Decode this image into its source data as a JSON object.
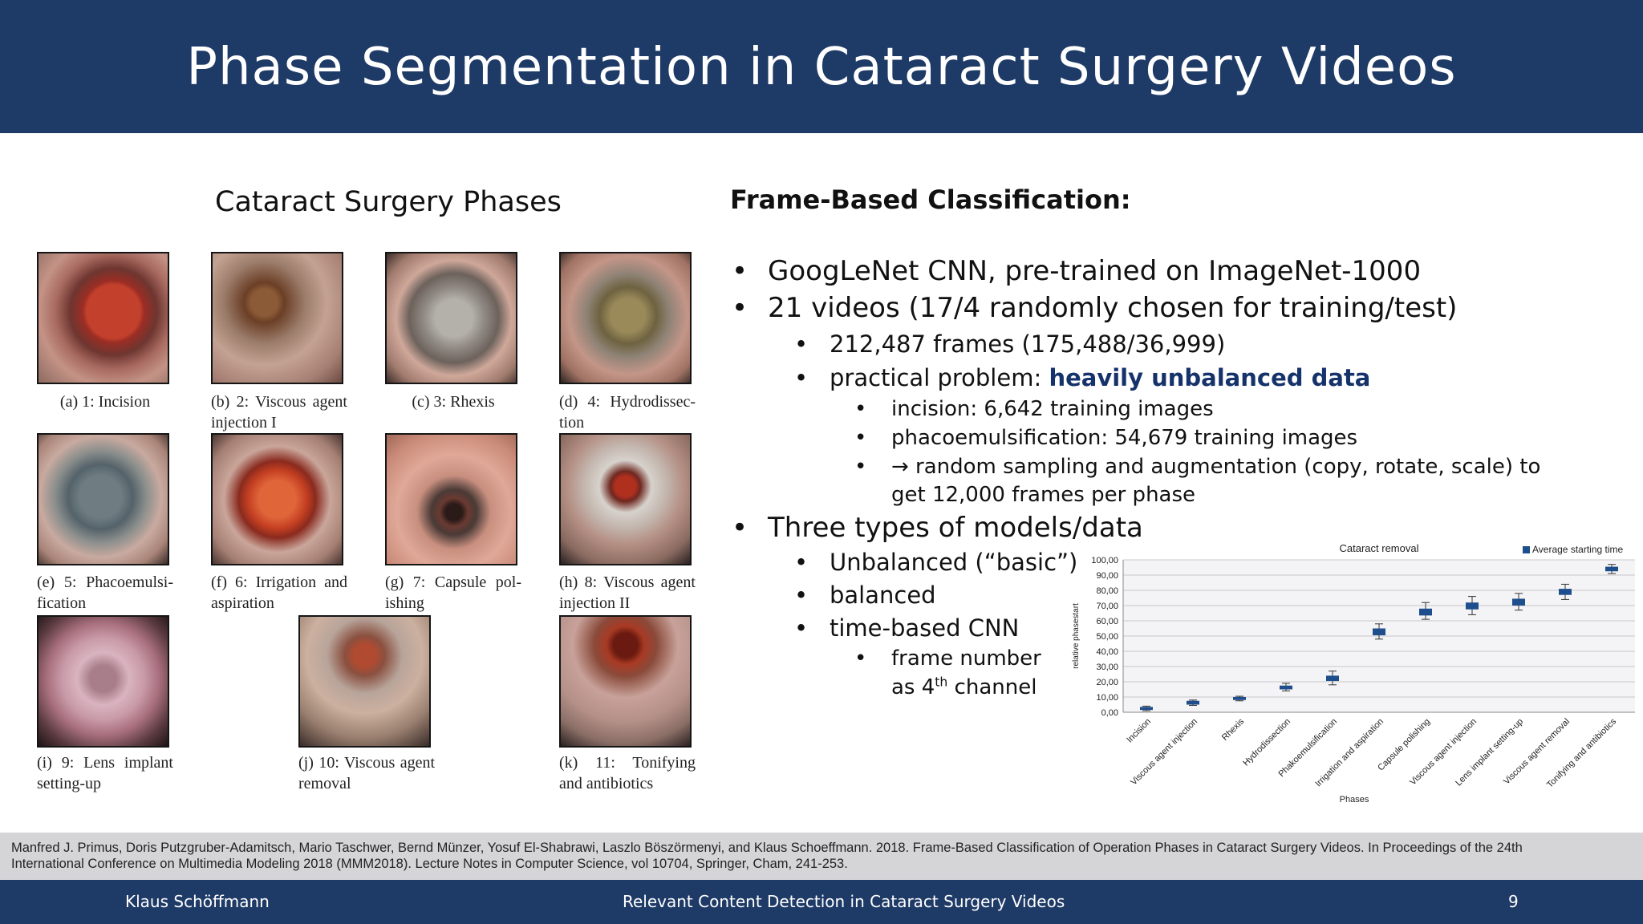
{
  "header": {
    "title": "Phase Segmentation in Cataract Surgery Videos"
  },
  "left": {
    "title": "Cataract Surgery Phases",
    "phases": [
      {
        "caption": "(a) 1: Incision"
      },
      {
        "caption": "(b) 2: Viscous agent injection I"
      },
      {
        "caption": "(c) 3: Rhexis"
      },
      {
        "caption": "(d) 4: Hydrodissec- tion"
      },
      {
        "caption": "(e) 5: Phacoemulsi- fication"
      },
      {
        "caption": "(f) 6: Irrigation and aspiration"
      },
      {
        "caption": "(g) 7: Capsule pol- ishing"
      },
      {
        "caption": "(h) 8: Viscous agent injection II"
      },
      {
        "caption": "(i) 9: Lens implant setting-up"
      },
      {
        "caption": "(j) 10: Viscous agent removal"
      },
      {
        "caption": "(k) 11: Tonifying and antibiotics"
      }
    ]
  },
  "right": {
    "title": "Frame-Based Classification:",
    "bullets": {
      "b1": "GoogLeNet CNN, pre-trained on ImageNet-1000",
      "b2": "21 videos (17/4 randomly chosen for training/test)",
      "b2_1": "212,487 frames (175,488/36,999)",
      "b2_2_prefix": "practical problem: ",
      "b2_2_highlight": "heavily unbalanced data",
      "b2_2_1": "incision: 6,642 training images",
      "b2_2_2": "phacoemulsification: 54,679 training images",
      "b2_2_3_line1": "→ random sampling and augmentation (copy, rotate, scale) to",
      "b2_2_3_line2": "get 12,000 frames per phase",
      "b3": "Three types of models/data",
      "b3_1": "Unbalanced (“basic”)",
      "b3_2": "balanced",
      "b3_3": "time-based CNN",
      "b3_3_1_line1": "frame number",
      "b3_3_1_line2_pre": "as 4",
      "b3_3_1_line2_sup": "th",
      "b3_3_1_line2_post": " channel"
    }
  },
  "chart_data": {
    "type": "box",
    "title": "Cataract removal",
    "xlabel": "Phases",
    "ylabel": "relative phasestart",
    "legend": "Average starting time",
    "legend_position": "top-right",
    "ylim": [
      0,
      100
    ],
    "yticks": [
      "0,00",
      "10,00",
      "20,00",
      "30,00",
      "40,00",
      "50,00",
      "60,00",
      "70,00",
      "80,00",
      "90,00",
      "100,00"
    ],
    "grid": true,
    "color": "#1f4e8c",
    "categories": [
      "Incision",
      "Viscous agent injection",
      "Rhexis",
      "Hydrodissection",
      "Phakoemulsification",
      "Irrigation and aspiration",
      "Capsule polishing",
      "Viscous agent injection",
      "Lens implant setting-up",
      "Viscous agent removal",
      "Tonifying and antibiotics"
    ],
    "boxes": [
      {
        "low": 1,
        "q1": 1.5,
        "q3": 3.5,
        "high": 4
      },
      {
        "low": 4.5,
        "q1": 5,
        "q3": 7.5,
        "high": 8
      },
      {
        "low": 7.5,
        "q1": 8,
        "q3": 10,
        "high": 10.5
      },
      {
        "low": 14,
        "q1": 15,
        "q3": 17.5,
        "high": 19
      },
      {
        "low": 18,
        "q1": 20.5,
        "q3": 24,
        "high": 27
      },
      {
        "low": 48,
        "q1": 50.5,
        "q3": 55,
        "high": 58
      },
      {
        "low": 61,
        "q1": 63.5,
        "q3": 68,
        "high": 72
      },
      {
        "low": 64,
        "q1": 67.5,
        "q3": 72,
        "high": 76
      },
      {
        "low": 67,
        "q1": 70,
        "q3": 74.5,
        "high": 78
      },
      {
        "low": 74,
        "q1": 77,
        "q3": 81,
        "high": 84
      },
      {
        "low": 91,
        "q1": 92.5,
        "q3": 95.5,
        "high": 97
      }
    ]
  },
  "citation": {
    "line1": "Manfred J. Primus, Doris Putzgruber-Adamitsch, Mario Taschwer, Bernd Münzer, Yosuf El-Shabrawi, Laszlo Böszörmenyi, and Klaus Schoeffmann. 2018. Frame-Based Classification of Operation Phases in Cataract Surgery Videos. In Proceedings of the 24th",
    "line2": "International Conference on Multimedia Modeling 2018 (MMM2018). Lecture Notes in Computer Science, vol 10704, Springer, Cham, 241-253."
  },
  "footer": {
    "author": "Klaus Schöffmann",
    "talk_title": "Relevant Content Detection in Cataract Surgery Videos",
    "page": "9"
  }
}
